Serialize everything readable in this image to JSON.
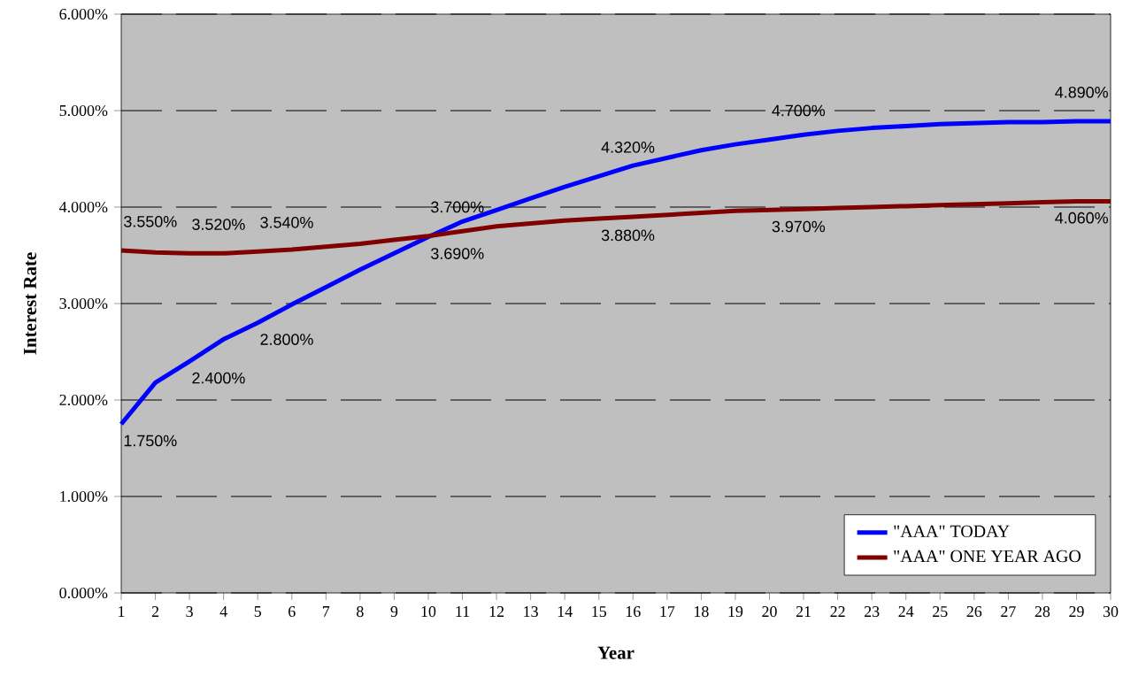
{
  "chart_data": {
    "type": "line",
    "xlabel": "Year",
    "ylabel": "Interest Rate",
    "x": [
      1,
      2,
      3,
      4,
      5,
      6,
      7,
      8,
      9,
      10,
      11,
      12,
      13,
      14,
      15,
      16,
      17,
      18,
      19,
      20,
      21,
      22,
      23,
      24,
      25,
      26,
      27,
      28,
      29,
      30
    ],
    "series": [
      {
        "name": "\"AAA\" TODAY",
        "color": "#0000ff",
        "values": [
          1.75,
          2.18,
          2.4,
          2.63,
          2.8,
          2.99,
          3.17,
          3.35,
          3.52,
          3.69,
          3.85,
          3.97,
          4.09,
          4.21,
          4.32,
          4.43,
          4.51,
          4.59,
          4.65,
          4.7,
          4.75,
          4.79,
          4.82,
          4.84,
          4.86,
          4.87,
          4.88,
          4.88,
          4.89,
          4.89
        ],
        "value_labels": [
          "1.750%",
          null,
          "2.400%",
          null,
          "2.800%",
          null,
          null,
          null,
          null,
          "3.690%",
          null,
          null,
          null,
          null,
          "4.320%",
          null,
          null,
          null,
          null,
          "4.700%",
          null,
          null,
          null,
          null,
          null,
          null,
          null,
          null,
          null,
          "4.890%"
        ]
      },
      {
        "name": "\"AAA\" ONE YEAR AGO",
        "color": "#800000",
        "values": [
          3.55,
          3.53,
          3.52,
          3.52,
          3.54,
          3.56,
          3.59,
          3.62,
          3.66,
          3.7,
          3.75,
          3.8,
          3.83,
          3.86,
          3.88,
          3.9,
          3.92,
          3.94,
          3.96,
          3.97,
          3.98,
          3.99,
          4.0,
          4.01,
          4.02,
          4.03,
          4.04,
          4.05,
          4.06,
          4.06
        ],
        "value_labels": [
          "3.550%",
          null,
          "3.520%",
          null,
          "3.540%",
          null,
          null,
          null,
          null,
          "3.700%",
          null,
          null,
          null,
          null,
          "3.880%",
          null,
          null,
          null,
          null,
          "3.970%",
          null,
          null,
          null,
          null,
          null,
          null,
          null,
          null,
          null,
          "4.060%"
        ]
      }
    ],
    "xlim": [
      1,
      30
    ],
    "xticks": [
      1,
      2,
      3,
      4,
      5,
      6,
      7,
      8,
      9,
      10,
      11,
      12,
      13,
      14,
      15,
      16,
      17,
      18,
      19,
      20,
      21,
      22,
      23,
      24,
      25,
      26,
      27,
      28,
      29,
      30
    ],
    "ylim": [
      0,
      6
    ],
    "yticks": [
      {
        "value": 0,
        "label": "0.000%"
      },
      {
        "value": 1,
        "label": "1.000%"
      },
      {
        "value": 2,
        "label": "2.000%"
      },
      {
        "value": 3,
        "label": "3.000%"
      },
      {
        "value": 4,
        "label": "4.000%"
      },
      {
        "value": 5,
        "label": "5.000%"
      },
      {
        "value": 6,
        "label": "6.000%"
      }
    ],
    "grid": "y",
    "legend": "bottom right"
  }
}
